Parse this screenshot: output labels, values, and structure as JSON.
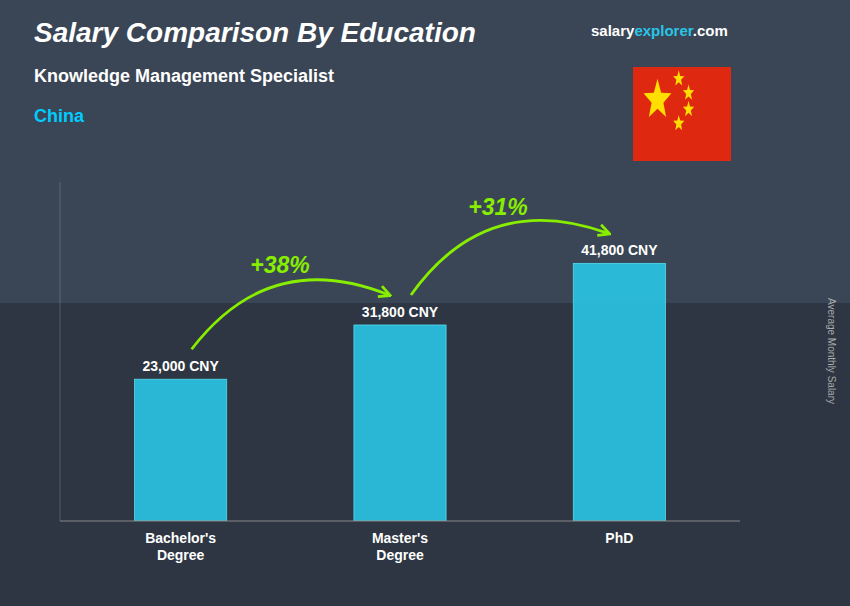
{
  "chart_data": {
    "type": "bar",
    "title": "Salary Comparison By Education",
    "subtitle": "Knowledge Management Specialist",
    "country": "China",
    "source": [
      "salary",
      "explorer",
      ".com"
    ],
    "ylabel": "Average Monthly Salary",
    "categories": [
      "Bachelor's\nDegree",
      "Master's\nDegree",
      "PhD"
    ],
    "values": [
      23000,
      31800,
      41800
    ],
    "value_labels": [
      "23,000 CNY",
      "31,800 CNY",
      "41,800 CNY"
    ],
    "annotations": [
      "+38%",
      "+31%"
    ],
    "color": "#29c5e6",
    "ylim": [
      0,
      55000
    ],
    "grid": false,
    "data_labels": true,
    "tick_labels": "x"
  }
}
